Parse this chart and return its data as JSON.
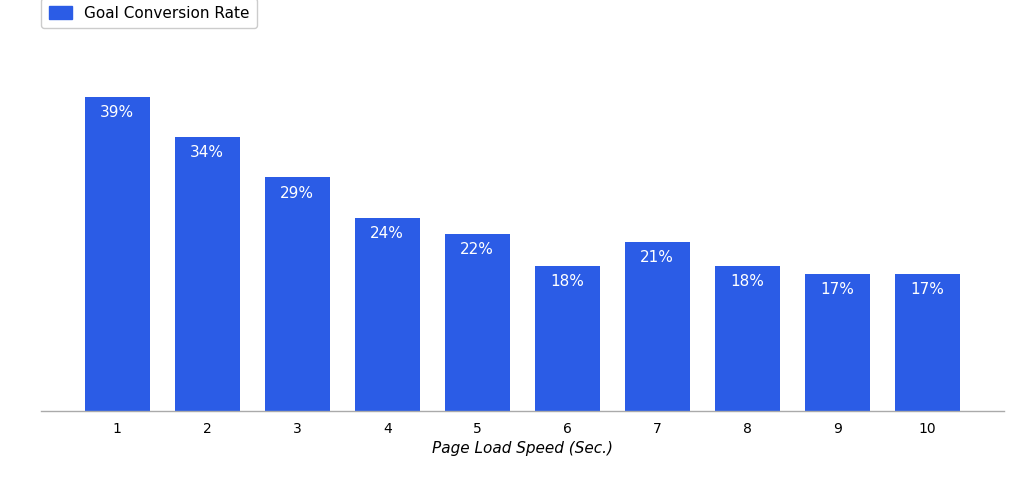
{
  "categories": [
    1,
    2,
    3,
    4,
    5,
    6,
    7,
    8,
    9,
    10
  ],
  "values": [
    39,
    34,
    29,
    24,
    22,
    18,
    21,
    18,
    17,
    17
  ],
  "labels": [
    "39%",
    "34%",
    "29%",
    "24%",
    "22%",
    "18%",
    "21%",
    "18%",
    "17%",
    "17%"
  ],
  "bar_color": "#2b5ce6",
  "background_color": "#ffffff",
  "xlabel": "Page Load Speed (Sec.)",
  "xlabel_style": "italic",
  "legend_label": "Goal Conversion Rate",
  "legend_color": "#2b5ce6",
  "label_color": "#ffffff",
  "label_fontsize": 11,
  "xlabel_fontsize": 11,
  "ylim": [
    0,
    42
  ],
  "bar_width": 0.72,
  "tick_fontsize": 10,
  "legend_fontsize": 11
}
